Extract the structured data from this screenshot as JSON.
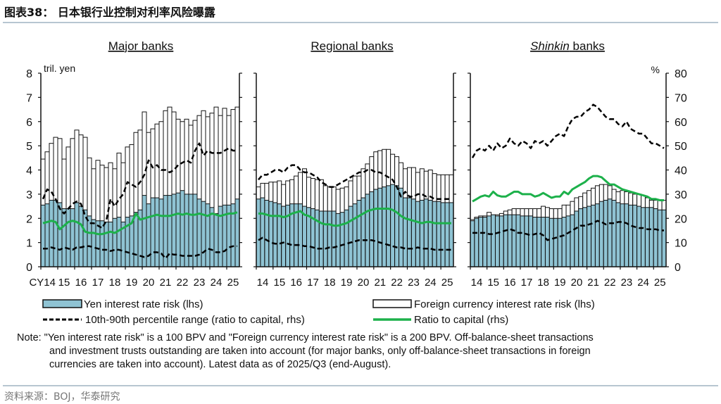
{
  "header": {
    "title": "图表38：  日本银行业控制对利率风险曝露"
  },
  "footer": {
    "source": "资料来源：BOJ，华泰研究"
  },
  "colors": {
    "yen": "#8fc3d3",
    "foreign": "#ffffff",
    "ratio": "#1db14b",
    "percentile": "#000000",
    "rule": "#9fb3c2"
  },
  "chart_data": {
    "type": "bar",
    "x_start": "2014Q1",
    "x_end": "2025Q3",
    "frequency": "quarterly",
    "x_tick_labels": [
      "14",
      "15",
      "16",
      "17",
      "18",
      "19",
      "20",
      "21",
      "22",
      "23",
      "24",
      "25"
    ],
    "x_prefix": "CY",
    "lhs_unit": "tril. yen",
    "rhs_unit": "%",
    "ylim_lhs": [
      0,
      8
    ],
    "ylim_rhs": [
      0,
      80
    ],
    "lhs_ticks": [
      "0",
      "1",
      "2",
      "3",
      "4",
      "5",
      "6",
      "7",
      "8"
    ],
    "rhs_ticks": [
      "0",
      "10",
      "20",
      "30",
      "40",
      "50",
      "60",
      "70",
      "80"
    ],
    "legend": {
      "yen": "Yen interest rate risk (lhs)",
      "foreign": "Foreign currency interest rate risk (lhs)",
      "percentile": "10th-90th percentile range (ratio to capital, rhs)",
      "ratio": "Ratio to capital (rhs)"
    },
    "note": [
      "Note: \"Yen interest rate risk\" is a 100 BPV and \"Foreign currency interest rate risk\" is a 200 BPV. Off-balance-sheet transactions",
      "and investment trusts outstanding are taken into account (for major banks, only off-balance-sheet transactions in foreign",
      "currencies are taken into account). Latest data as of 2025/Q3 (end-August)."
    ],
    "panels": [
      {
        "title": "Major banks",
        "total": [
          4.45,
          4.75,
          5.1,
          5.35,
          5.3,
          4.45,
          4.95,
          5.3,
          5.65,
          5.45,
          5.35,
          4.5,
          4.05,
          4.4,
          4.2,
          4.1,
          4.3,
          4.05,
          4.7,
          4.3,
          4.95,
          5.05,
          5.55,
          5.65,
          6.4,
          5.55,
          5.7,
          5.9,
          6.0,
          6.45,
          6.6,
          6.4,
          6.1,
          6.0,
          6.1,
          5.85,
          6.05,
          6.25,
          6.45,
          6.2,
          6.35,
          6.6,
          6.25,
          6.55,
          6.25,
          6.5,
          6.6
        ],
        "yen": [
          2.55,
          2.6,
          2.75,
          2.75,
          2.65,
          2.4,
          2.4,
          2.4,
          2.65,
          2.5,
          2.35,
          2.1,
          1.95,
          1.9,
          1.9,
          1.85,
          1.85,
          2.0,
          2.05,
          1.85,
          2.05,
          2.1,
          2.25,
          2.35,
          2.95,
          2.6,
          2.85,
          2.85,
          2.8,
          2.95,
          2.95,
          3.0,
          3.05,
          3.15,
          3.0,
          3.0,
          3.0,
          2.8,
          2.7,
          2.6,
          2.45,
          2.2,
          2.5,
          2.55,
          2.55,
          2.6,
          2.8
        ],
        "ratio": [
          18,
          18.5,
          19,
          18.5,
          15.5,
          17,
          18.5,
          19,
          18.5,
          17.5,
          14.5,
          14,
          14,
          13.5,
          13.5,
          14,
          14.5,
          14,
          15,
          16,
          17,
          18,
          22,
          19.5,
          20,
          20.5,
          21,
          21.5,
          21,
          21,
          21,
          21.5,
          22,
          21.5,
          22,
          21.5,
          21.5,
          22,
          21.5,
          21,
          22,
          21.5,
          21,
          21.5,
          22,
          22,
          22.5
        ],
        "p90": [
          28,
          32,
          31,
          28,
          24,
          22,
          24,
          26,
          27,
          26,
          21,
          18,
          18,
          17,
          16,
          19,
          28,
          25,
          28,
          30,
          35,
          34,
          33,
          35,
          38,
          44,
          41,
          42,
          40,
          40,
          39,
          40,
          42,
          43,
          44,
          43,
          48,
          51,
          46,
          48,
          47,
          47,
          47,
          48,
          49,
          48,
          48
        ],
        "p10": [
          7.5,
          7.5,
          8,
          7.5,
          7,
          8,
          7.5,
          7,
          8,
          8,
          8.5,
          8.5,
          8,
          7.5,
          7,
          7,
          6.5,
          7,
          7,
          6.5,
          6,
          5.5,
          5,
          4.5,
          4,
          4.5,
          6,
          6,
          5.5,
          3.5,
          5.5,
          5,
          5,
          4.5,
          4.5,
          4.5,
          4.5,
          5,
          6,
          7.5,
          7,
          6,
          6,
          6.5,
          8,
          8.5,
          8.5
        ]
      },
      {
        "title": "Regional banks",
        "total": [
          3.3,
          3.45,
          3.45,
          3.5,
          3.5,
          3.55,
          3.4,
          3.55,
          3.6,
          3.75,
          3.9,
          4.05,
          3.7,
          3.65,
          3.6,
          3.6,
          3.35,
          3.3,
          3.3,
          3.2,
          3.25,
          3.3,
          3.55,
          3.75,
          3.75,
          4.05,
          4.25,
          4.55,
          4.75,
          4.8,
          4.85,
          4.85,
          4.65,
          4.55,
          4.3,
          4.05,
          4.1,
          4.1,
          3.9,
          4.05,
          3.95,
          4.0,
          3.85,
          3.8,
          3.8,
          3.8,
          3.8
        ],
        "yen": [
          2.8,
          2.85,
          2.75,
          2.7,
          2.65,
          2.6,
          2.5,
          2.55,
          2.6,
          2.6,
          2.6,
          2.5,
          2.45,
          2.4,
          2.35,
          2.3,
          2.3,
          2.3,
          2.3,
          2.2,
          2.25,
          2.35,
          2.5,
          2.6,
          2.75,
          2.85,
          3.0,
          3.1,
          3.2,
          3.25,
          3.3,
          3.35,
          3.4,
          3.35,
          3.25,
          2.85,
          2.85,
          2.8,
          2.7,
          2.75,
          2.8,
          2.75,
          2.7,
          2.7,
          2.65,
          2.65,
          2.65
        ],
        "ratio": [
          22,
          22,
          21.5,
          21,
          21,
          21,
          20.5,
          21,
          22,
          22.5,
          23,
          21.5,
          21,
          20,
          19,
          18,
          17.5,
          17.5,
          17,
          17,
          17.5,
          18,
          19,
          20,
          21,
          22,
          23,
          23.5,
          24,
          24,
          24,
          24,
          23.5,
          22.5,
          21,
          20,
          19.5,
          19,
          18.5,
          18,
          18.5,
          18.5,
          18,
          18,
          18,
          18,
          18
        ],
        "p90": [
          36,
          38,
          38,
          39,
          40,
          40,
          39,
          41,
          42,
          42,
          40,
          39,
          39,
          38,
          37,
          35,
          34,
          33,
          33,
          34,
          35,
          36,
          37,
          38,
          39,
          39,
          40,
          40,
          39,
          39,
          38,
          37,
          36,
          33,
          29,
          31,
          29,
          29,
          30,
          30,
          29,
          29,
          28,
          28,
          28,
          28,
          28
        ],
        "p10": [
          11,
          12,
          11,
          10,
          9.5,
          9.5,
          10,
          9.5,
          9,
          9,
          9,
          8.5,
          8.5,
          8,
          7.5,
          7.5,
          7.5,
          8,
          8,
          8.5,
          9,
          9.5,
          10,
          10.5,
          11,
          11,
          11,
          11,
          10.5,
          10,
          9.5,
          9,
          8.5,
          8,
          8,
          7.5,
          7.5,
          7.5,
          8,
          7.5,
          7.5,
          7.5,
          7,
          7,
          7,
          7,
          7
        ]
      },
      {
        "title": "Shinkin banks",
        "title_italic": "Shinkin",
        "title_rest": " banks",
        "total": [
          1.95,
          2.05,
          2.1,
          2.1,
          2.25,
          2.1,
          2.15,
          2.2,
          2.3,
          2.35,
          2.4,
          2.4,
          2.4,
          2.4,
          2.4,
          2.4,
          2.4,
          2.5,
          2.45,
          2.4,
          2.4,
          2.4,
          2.55,
          2.55,
          2.7,
          2.85,
          2.9,
          3.05,
          3.15,
          3.25,
          3.35,
          3.4,
          3.4,
          3.35,
          3.2,
          3.1,
          3.15,
          3.1,
          3.05,
          3.0,
          3.0,
          2.95,
          2.85,
          2.75,
          2.75,
          2.75,
          2.75
        ],
        "yen": [
          1.9,
          2.0,
          2.05,
          2.05,
          2.1,
          2.15,
          2.1,
          2.1,
          2.15,
          2.15,
          2.15,
          2.15,
          2.1,
          2.1,
          2.1,
          2.05,
          2.05,
          2.05,
          2.05,
          2.0,
          2.0,
          2.0,
          2.05,
          2.1,
          2.15,
          2.3,
          2.4,
          2.45,
          2.5,
          2.55,
          2.6,
          2.7,
          2.75,
          2.8,
          2.75,
          2.65,
          2.6,
          2.6,
          2.55,
          2.55,
          2.5,
          2.45,
          2.45,
          2.45,
          2.4,
          2.35,
          2.35
        ],
        "ratio": [
          27,
          28,
          29,
          29.5,
          29,
          31,
          29.5,
          29,
          29,
          30,
          31,
          31,
          30,
          30,
          30,
          29,
          29.5,
          30.5,
          29.5,
          28.5,
          29,
          29,
          31,
          30,
          32,
          33,
          34,
          35,
          36.5,
          37.5,
          37.5,
          37,
          35.5,
          34,
          34,
          33,
          32,
          31.5,
          31,
          30.5,
          30,
          29.5,
          29,
          28,
          28,
          27.5,
          27.5
        ],
        "p90": [
          45,
          48,
          49,
          48,
          50,
          48,
          51,
          49,
          50,
          53,
          51,
          50,
          52,
          51,
          49,
          52,
          51,
          52,
          50,
          52,
          54,
          55,
          54,
          58,
          61,
          62,
          62,
          64,
          65,
          67,
          66,
          64,
          62,
          61,
          61,
          59,
          58,
          60,
          57,
          56,
          55,
          55,
          53,
          51,
          51,
          50,
          49
        ],
        "p10": [
          14,
          14,
          14,
          14,
          13.5,
          13.5,
          14,
          14.5,
          15,
          15.5,
          15,
          14,
          14,
          13.5,
          13,
          13.5,
          14,
          13,
          11,
          11.5,
          12,
          12.5,
          13,
          14,
          15,
          16,
          17,
          17,
          17.5,
          18,
          19,
          18.5,
          17.5,
          18,
          18,
          18.5,
          18.5,
          18,
          17,
          16.5,
          16,
          16,
          15.5,
          15.5,
          15.5,
          15,
          15
        ]
      }
    ]
  }
}
